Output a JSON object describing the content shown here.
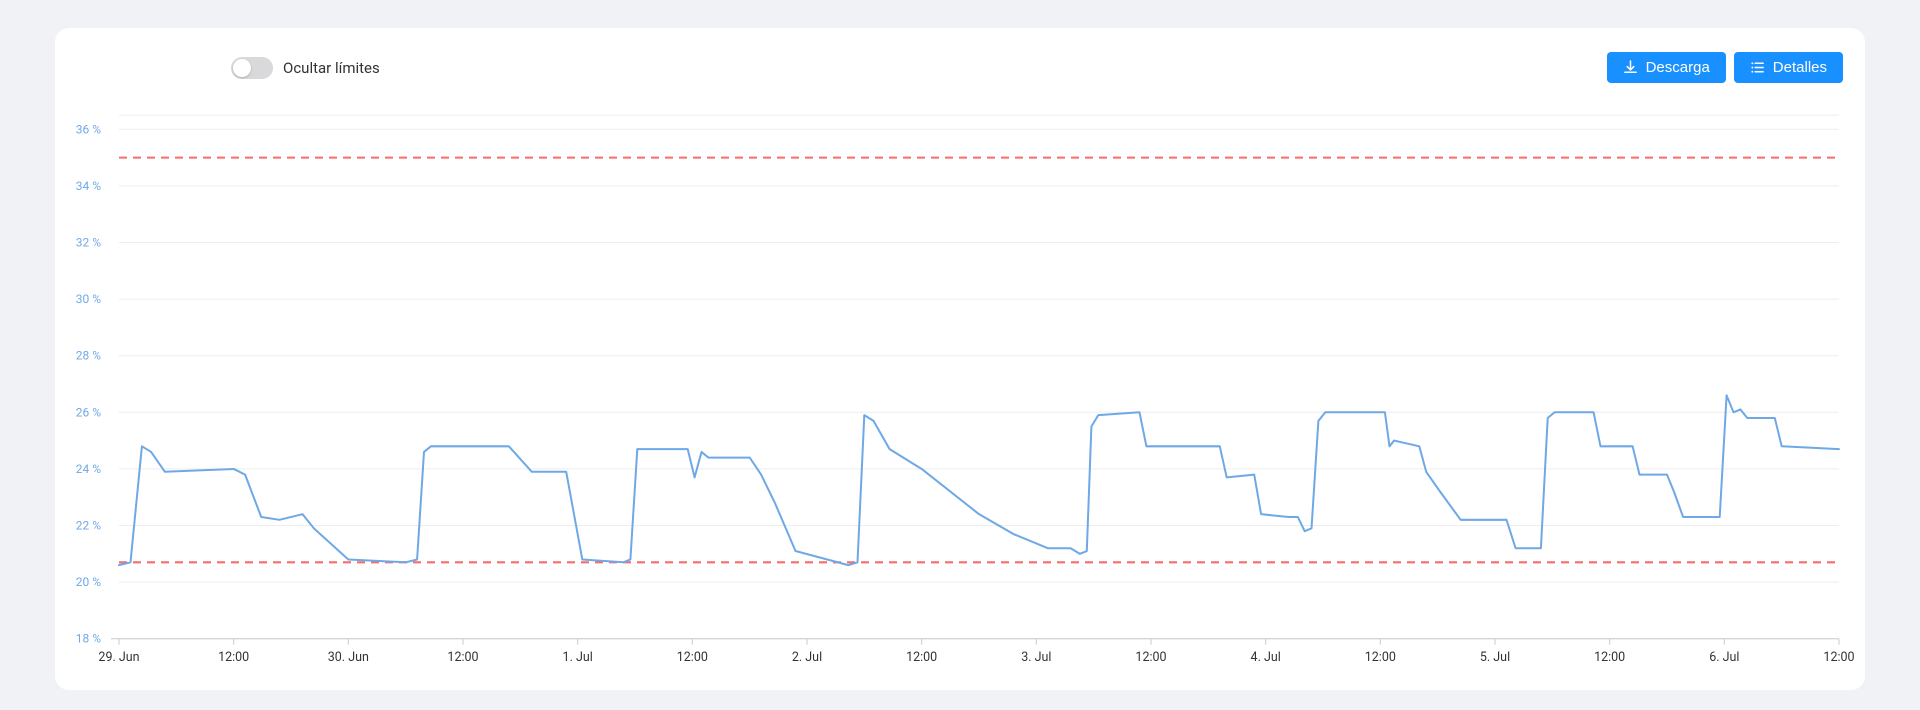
{
  "toggle": {
    "label": "Ocultar límites",
    "checked": false
  },
  "buttons": {
    "download": {
      "label": "Descarga"
    },
    "details": {
      "label": "Detalles"
    }
  },
  "chart": {
    "type": "line",
    "background_color": "#ffffff",
    "grid_color": "#eeeeee",
    "line_color": "#6fa8e6",
    "line_width": 2,
    "limit_line_color": "#f56c6c",
    "limit_line_dash": "8 6",
    "y_label_color": "#6fa8e6",
    "x_label_color": "#333333",
    "y_label_fontsize": 12,
    "x_label_fontsize": 12.5,
    "ylim": [
      18,
      36.5
    ],
    "yticks": [
      18,
      20,
      22,
      24,
      26,
      28,
      30,
      32,
      34,
      36
    ],
    "ytick_labels": [
      "18 %",
      "20 %",
      "22 %",
      "24 %",
      "26 %",
      "28 %",
      "30 %",
      "32 %",
      "34 %",
      "36 %"
    ],
    "upper_limit": 35,
    "lower_limit": 20.7,
    "xticks": [
      "29. Jun",
      "12:00",
      "30. Jun",
      "12:00",
      "1. Jul",
      "12:00",
      "2. Jul",
      "12:00",
      "3. Jul",
      "12:00",
      "4. Jul",
      "12:00",
      "5. Jul",
      "12:00",
      "6. Jul",
      "12:00"
    ],
    "series": [
      {
        "t": 0.0,
        "v": 20.6
      },
      {
        "t": 0.5,
        "v": 20.7
      },
      {
        "t": 1.0,
        "v": 24.8
      },
      {
        "t": 1.4,
        "v": 24.6
      },
      {
        "t": 2.0,
        "v": 23.9
      },
      {
        "t": 5.0,
        "v": 24.0
      },
      {
        "t": 5.5,
        "v": 23.8
      },
      {
        "t": 6.2,
        "v": 22.3
      },
      {
        "t": 7.0,
        "v": 22.2
      },
      {
        "t": 8.0,
        "v": 22.4
      },
      {
        "t": 8.5,
        "v": 21.9
      },
      {
        "t": 10.0,
        "v": 20.8
      },
      {
        "t": 12.5,
        "v": 20.7
      },
      {
        "t": 13.0,
        "v": 20.8
      },
      {
        "t": 13.3,
        "v": 24.6
      },
      {
        "t": 13.6,
        "v": 24.8
      },
      {
        "t": 17.0,
        "v": 24.8
      },
      {
        "t": 18.0,
        "v": 23.9
      },
      {
        "t": 19.5,
        "v": 23.9
      },
      {
        "t": 20.2,
        "v": 20.8
      },
      {
        "t": 22.0,
        "v": 20.7
      },
      {
        "t": 22.3,
        "v": 20.8
      },
      {
        "t": 22.6,
        "v": 24.7
      },
      {
        "t": 24.8,
        "v": 24.7
      },
      {
        "t": 25.1,
        "v": 23.7
      },
      {
        "t": 25.4,
        "v": 24.6
      },
      {
        "t": 25.7,
        "v": 24.4
      },
      {
        "t": 27.5,
        "v": 24.4
      },
      {
        "t": 28.0,
        "v": 23.8
      },
      {
        "t": 28.6,
        "v": 22.8
      },
      {
        "t": 29.5,
        "v": 21.1
      },
      {
        "t": 31.8,
        "v": 20.6
      },
      {
        "t": 32.2,
        "v": 20.7
      },
      {
        "t": 32.5,
        "v": 25.9
      },
      {
        "t": 32.9,
        "v": 25.7
      },
      {
        "t": 33.6,
        "v": 24.7
      },
      {
        "t": 35.0,
        "v": 24.0
      },
      {
        "t": 37.5,
        "v": 22.4
      },
      {
        "t": 39.0,
        "v": 21.7
      },
      {
        "t": 40.5,
        "v": 21.2
      },
      {
        "t": 41.5,
        "v": 21.2
      },
      {
        "t": 41.9,
        "v": 21.0
      },
      {
        "t": 42.2,
        "v": 21.1
      },
      {
        "t": 42.4,
        "v": 25.5
      },
      {
        "t": 42.7,
        "v": 25.9
      },
      {
        "t": 44.5,
        "v": 26.0
      },
      {
        "t": 44.8,
        "v": 24.8
      },
      {
        "t": 48.0,
        "v": 24.8
      },
      {
        "t": 48.3,
        "v": 23.7
      },
      {
        "t": 49.5,
        "v": 23.8
      },
      {
        "t": 49.8,
        "v": 22.4
      },
      {
        "t": 51.0,
        "v": 22.3
      },
      {
        "t": 51.4,
        "v": 22.3
      },
      {
        "t": 51.7,
        "v": 21.8
      },
      {
        "t": 52.0,
        "v": 21.9
      },
      {
        "t": 52.3,
        "v": 25.7
      },
      {
        "t": 52.6,
        "v": 26.0
      },
      {
        "t": 55.2,
        "v": 26.0
      },
      {
        "t": 55.4,
        "v": 24.8
      },
      {
        "t": 55.6,
        "v": 25.0
      },
      {
        "t": 56.7,
        "v": 24.8
      },
      {
        "t": 57.0,
        "v": 23.9
      },
      {
        "t": 57.6,
        "v": 23.2
      },
      {
        "t": 58.5,
        "v": 22.2
      },
      {
        "t": 60.5,
        "v": 22.2
      },
      {
        "t": 60.9,
        "v": 21.2
      },
      {
        "t": 62.0,
        "v": 21.2
      },
      {
        "t": 62.3,
        "v": 25.8
      },
      {
        "t": 62.6,
        "v": 26.0
      },
      {
        "t": 64.3,
        "v": 26.0
      },
      {
        "t": 64.6,
        "v": 24.8
      },
      {
        "t": 66.0,
        "v": 24.8
      },
      {
        "t": 66.3,
        "v": 23.8
      },
      {
        "t": 67.5,
        "v": 23.8
      },
      {
        "t": 67.8,
        "v": 23.2
      },
      {
        "t": 68.2,
        "v": 22.3
      },
      {
        "t": 69.8,
        "v": 22.3
      },
      {
        "t": 70.1,
        "v": 26.6
      },
      {
        "t": 70.4,
        "v": 26.0
      },
      {
        "t": 70.7,
        "v": 26.1
      },
      {
        "t": 71.0,
        "v": 25.8
      },
      {
        "t": 72.2,
        "v": 25.8
      },
      {
        "t": 72.5,
        "v": 24.8
      },
      {
        "t": 75.0,
        "v": 24.7
      }
    ]
  },
  "colors": {
    "page_bg": "#f0f2f5",
    "card_bg": "#ffffff",
    "button_bg": "#1890ff",
    "button_text": "#ffffff",
    "toggle_bg": "#d9d9dc",
    "toggle_knob": "#ffffff",
    "text": "#333333"
  }
}
